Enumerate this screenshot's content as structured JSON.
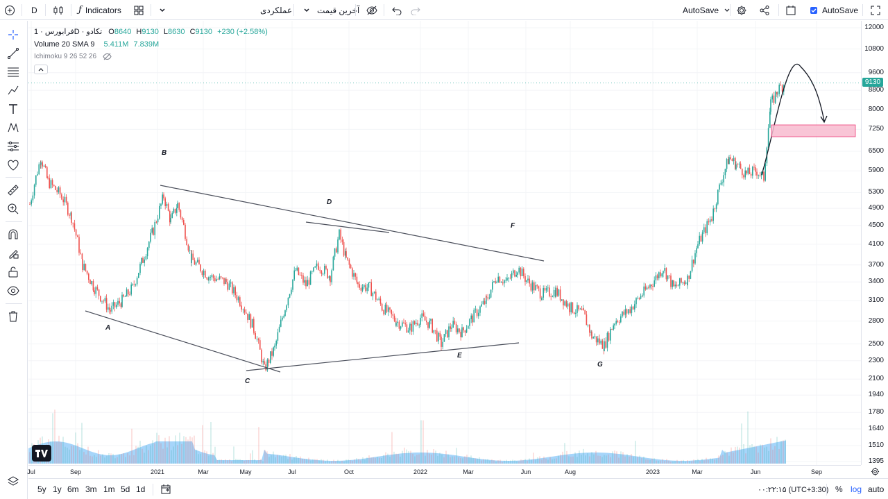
{
  "topbar": {
    "interval": "D",
    "indicators_label": "Indicators",
    "performance_label": "عملکردی",
    "price_type_label": "آخرین قیمت",
    "autosave_label": "AutoSave",
    "autosave2_label": "AutoSave"
  },
  "legend": {
    "symbol": "فرابورس · 1D · تکادو",
    "o_label": "O",
    "o_value": "8640",
    "h_label": "H",
    "h_value": "9130",
    "l_label": "L",
    "l_value": "8630",
    "c_label": "C",
    "c_value": "9130",
    "change": "+230 (+2.58%)",
    "volume_label": "Volume 20 SMA 9",
    "volume_v1": "5.411M",
    "volume_v2": "7.839M",
    "ichimoku_label": "Ichimoku 9 26 52 26"
  },
  "price_axis": {
    "ticks": [
      "12000",
      "10800",
      "9600",
      "8800",
      "8000",
      "7250",
      "6500",
      "5900",
      "5300",
      "4900",
      "4500",
      "4100",
      "3700",
      "3400",
      "3100",
      "2800",
      "2500",
      "2300",
      "2100",
      "1940",
      "1780",
      "1640",
      "1510",
      "1395"
    ],
    "current_price": "9130"
  },
  "time_axis": {
    "ticks": [
      "Jul",
      "Sep",
      "2021",
      "Mar",
      "May",
      "Jul",
      "Oct",
      "2022",
      "Mar",
      "Jun",
      "Aug",
      "2023",
      "Mar",
      "Jun",
      "Sep"
    ]
  },
  "wave_labels": [
    "A",
    "B",
    "C",
    "D",
    "E",
    "F",
    "G"
  ],
  "bottombar": {
    "ranges": [
      "5y",
      "1y",
      "6m",
      "3m",
      "1m",
      "5d",
      "1d"
    ],
    "clock": "۰۰:۲۲:۱۵ (UTC+3:30)",
    "percent_label": "%",
    "log_label": "log",
    "auto_label": "auto"
  },
  "colors": {
    "up": "#26a69a",
    "down": "#ef5350",
    "volume": "#90caf9",
    "accent": "#2962ff",
    "target_box": "#f8bbd0"
  },
  "chart_data": {
    "type": "candlestick",
    "title": "فرابورس · 1D · تکادو",
    "scale": "log",
    "ylim": [
      1395,
      12000
    ],
    "x": [
      "2020-07",
      "2020-09",
      "2020-11",
      "2021-01",
      "2021-03",
      "2021-05",
      "2021-07",
      "2021-10",
      "2022-01",
      "2022-03",
      "2022-06",
      "2022-08",
      "2023-01",
      "2023-03",
      "2023-05",
      "2023-06"
    ],
    "close": [
      5300,
      3400,
      2900,
      5100,
      3700,
      2300,
      3400,
      4200,
      3000,
      2600,
      3650,
      2500,
      3500,
      5300,
      6200,
      9130
    ],
    "last_ohlc": {
      "open": 8640,
      "high": 9130,
      "low": 8630,
      "close": 9130
    },
    "wave_points": {
      "A": "2020-11",
      "B": "2021-01",
      "C": "2021-05",
      "D": "2021-09",
      "E": "2022-02",
      "F": "2022-05",
      "G": "2022-09"
    },
    "projection": {
      "peak": 9800,
      "target_zone": [
        6800,
        7400
      ]
    }
  }
}
